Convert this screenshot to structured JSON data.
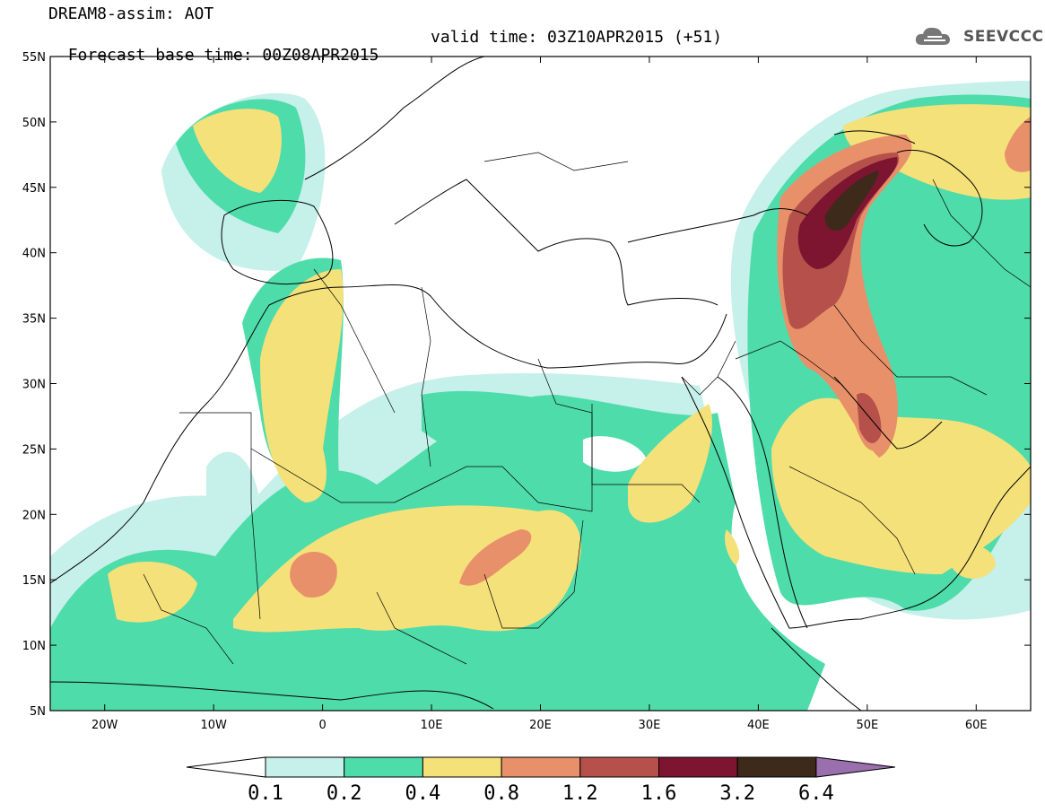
{
  "header": {
    "title": "DREAM8-assim: AOT",
    "base_time": "Forecast base time: 00Z08APR2015",
    "valid_time": "valid time: 03Z10APR2015 (+51)",
    "logo_text": "SEEVCCC"
  },
  "map": {
    "lon_range": [
      -25,
      65
    ],
    "lat_range": [
      5,
      55
    ],
    "lon_ticks": [
      "20W",
      "10W",
      "0",
      "10E",
      "20E",
      "30E",
      "40E",
      "50E",
      "60E"
    ],
    "lat_ticks": [
      "5N",
      "10N",
      "15N",
      "20N",
      "25N",
      "30N",
      "35N",
      "40N",
      "45N",
      "50N",
      "55N"
    ],
    "variable": "AOT"
  },
  "colorbar": {
    "labels": [
      "0.1",
      "0.2",
      "0.4",
      "0.8",
      "1.2",
      "1.6",
      "3.2",
      "6.4"
    ],
    "colors": [
      "#c6f0ea",
      "#4fdcab",
      "#f5e17a",
      "#e8906a",
      "#b5514a",
      "#7d1430",
      "#3d2a1a"
    ],
    "under_color": "#ffffff",
    "over_color": "#9a6fae"
  }
}
